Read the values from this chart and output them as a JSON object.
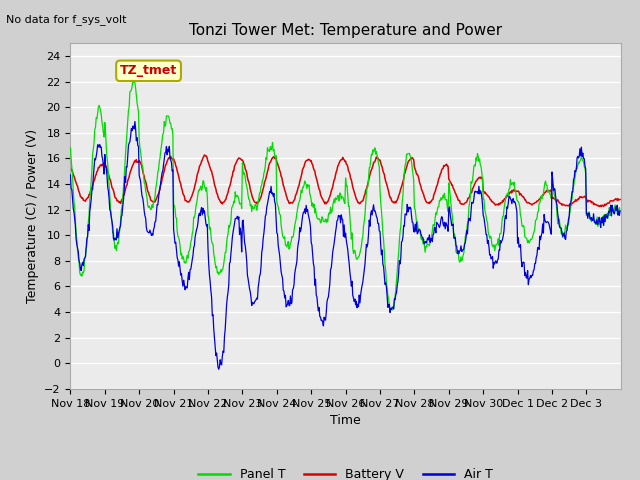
{
  "title": "Tonzi Tower Met: Temperature and Power",
  "ylabel": "Temperature (C) / Power (V)",
  "xlabel": "Time",
  "top_left_note": "No data for f_sys_volt",
  "annotation_label": "TZ_tmet",
  "annotation_color": "#cc0000",
  "annotation_bg": "#ffffcc",
  "annotation_border": "#aaaa00",
  "ylim": [
    -2,
    25
  ],
  "yticks": [
    -2,
    0,
    2,
    4,
    6,
    8,
    10,
    12,
    14,
    16,
    18,
    20,
    22,
    24
  ],
  "panel_t_color": "#00dd00",
  "battery_v_color": "#dd0000",
  "air_t_color": "#0000dd",
  "x_tick_labels": [
    "Nov 18",
    "Nov 19",
    "Nov 20",
    "Nov 21",
    "Nov 22",
    "Nov 23",
    "Nov 24",
    "Nov 25",
    "Nov 26",
    "Nov 27",
    "Nov 28",
    "Nov 29",
    "Nov 30",
    "Dec 1",
    "Dec 2",
    "Dec 3"
  ],
  "legend_entries": [
    "Panel T",
    "Battery V",
    "Air T"
  ],
  "legend_colors": [
    "#00dd00",
    "#dd0000",
    "#0000dd"
  ],
  "panel_peaks": [
    20.0,
    22.0,
    19.2,
    14.0,
    13.0,
    16.8,
    14.0,
    13.0,
    16.8,
    16.5,
    13.0,
    16.0,
    14.0,
    13.8,
    16.0,
    12.0
  ],
  "panel_troughs": [
    7.0,
    9.0,
    12.0,
    8.0,
    7.0,
    12.0,
    9.0,
    11.0,
    8.0,
    4.0,
    9.0,
    8.0,
    9.0,
    9.5,
    10.0,
    11.0
  ],
  "air_peaks": [
    17.0,
    18.5,
    16.5,
    12.0,
    11.5,
    13.5,
    12.0,
    11.5,
    12.0,
    12.0,
    11.0,
    13.5,
    13.0,
    11.0,
    16.5,
    12.0
  ],
  "air_troughs": [
    7.5,
    9.5,
    10.0,
    6.0,
    -0.2,
    4.5,
    4.5,
    3.2,
    4.5,
    4.2,
    9.5,
    8.5,
    7.8,
    6.5,
    10.0,
    11.0
  ],
  "batt_peaks": [
    15.5,
    15.8,
    16.1,
    16.2,
    16.0,
    16.1,
    15.9,
    16.0,
    16.0,
    16.0,
    15.5,
    14.5,
    13.5,
    13.5,
    13.0,
    12.8
  ],
  "batt_base": [
    12.7,
    12.6,
    12.6,
    12.6,
    12.5,
    12.5,
    12.5,
    12.5,
    12.5,
    12.5,
    12.5,
    12.4,
    12.4,
    12.4,
    12.3,
    12.3
  ]
}
